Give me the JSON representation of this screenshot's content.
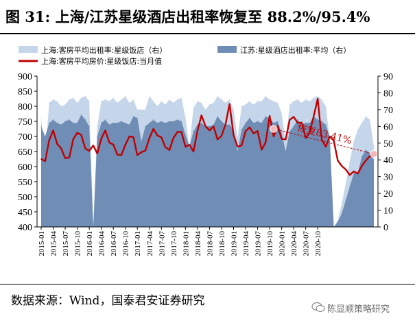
{
  "header": {
    "title": "图 31: 上海/江苏星级酒店出租率恢复至 88.2%/95.4%"
  },
  "footer": {
    "source": "数据来源：Wind，国泰君安证券研究",
    "watermark": "陈显顺策略研究"
  },
  "colors": {
    "sh_occ": "#c5d6ea",
    "js_occ": "#6f8db5",
    "sh_price": "#c00000",
    "annotation": "#c00000"
  },
  "chart_data": {
    "type": "area",
    "x_labels": [
      "2015-01",
      "2015-04",
      "2015-07",
      "2015-10",
      "2016-01",
      "2016-04",
      "2016-07",
      "2016-10",
      "2017-01",
      "2017-04",
      "2017-07",
      "2017-10",
      "2018-01",
      "2018-04",
      "2018-07",
      "2018-10",
      "2019-01",
      "2019-04",
      "2019-07",
      "2019-10",
      "2020-01",
      "2020-04",
      "2020-07",
      "2020-10"
    ],
    "ylim_left": [
      400,
      900
    ],
    "yticks_left": [
      400,
      450,
      500,
      550,
      600,
      650,
      700,
      750,
      800,
      850,
      900
    ],
    "ylim_right": [
      0,
      90
    ],
    "yticks_right": [
      0,
      10,
      20,
      30,
      40,
      50,
      60,
      70,
      80,
      90
    ],
    "grid": false,
    "legend_position": "top",
    "series": [
      {
        "name": "上海:客房平均出租率:星级饭店（右）",
        "type": "area",
        "axis": "right",
        "values": [
          65,
          42,
          74,
          76,
          75,
          72,
          73,
          76,
          77,
          74,
          77,
          78,
          75,
          0,
          60,
          75,
          76,
          75,
          77,
          74,
          76,
          78,
          74,
          76,
          70,
          70,
          70,
          78,
          75,
          72,
          75,
          73,
          76,
          74,
          76,
          77,
          65,
          48,
          71,
          75,
          74,
          70,
          73,
          74,
          78,
          76,
          74,
          76,
          70,
          53,
          72,
          73,
          75,
          73,
          75,
          75,
          78,
          76,
          75,
          74,
          68,
          50,
          73,
          75,
          76,
          74,
          76,
          75,
          77,
          78,
          76,
          72,
          52,
          0,
          4,
          14,
          26,
          39,
          51,
          58,
          62,
          66,
          64,
          48
        ]
      },
      {
        "name": "江苏:星级酒店出租率:平均（右）",
        "type": "area",
        "axis": "right",
        "values": [
          60,
          54,
          62,
          64,
          62,
          61,
          63,
          64,
          62,
          62,
          67,
          64,
          60,
          0,
          54,
          62,
          64,
          61,
          62,
          62,
          63,
          62,
          61,
          66,
          65,
          51,
          60,
          62,
          64,
          62,
          63,
          62,
          63,
          63,
          64,
          63,
          55,
          48,
          57,
          61,
          62,
          60,
          60,
          61,
          66,
          63,
          61,
          61,
          58,
          45,
          58,
          62,
          65,
          62,
          63,
          62,
          66,
          65,
          62,
          63,
          56,
          45,
          57,
          60,
          64,
          61,
          62,
          62,
          66,
          64,
          63,
          61,
          54,
          0,
          3,
          8,
          16,
          24,
          32,
          32,
          42,
          46,
          44,
          40
        ]
      },
      {
        "name": "上海:客房平均房价:星级饭店:当月值",
        "type": "line",
        "axis": "left",
        "values": [
          625,
          618,
          687,
          720,
          675,
          660,
          628,
          630,
          690,
          712,
          705,
          660,
          652,
          670,
          643,
          693,
          720,
          680,
          673,
          640,
          638,
          672,
          700,
          698,
          638,
          648,
          653,
          694,
          725,
          703,
          697,
          664,
          655,
          695,
          715,
          715,
          666,
          672,
          650,
          718,
          770,
          734,
          720,
          733,
          690,
          702,
          740,
          807,
          705,
          666,
          670,
          717,
          730,
          710,
          718,
          656,
          680,
          768,
          700,
          735,
          692,
          690,
          755,
          765,
          745,
          746,
          695,
          712,
          767,
          825,
          690,
          666,
          700,
          686,
          620,
          602,
          590,
          572,
          584,
          577,
          602,
          620,
          635,
          634
        ]
      }
    ],
    "annotation": {
      "text": "恢复83.41%",
      "start": {
        "series_index": 58,
        "value": 725
      },
      "end": {
        "series_index": 83,
        "value": 642
      }
    }
  }
}
